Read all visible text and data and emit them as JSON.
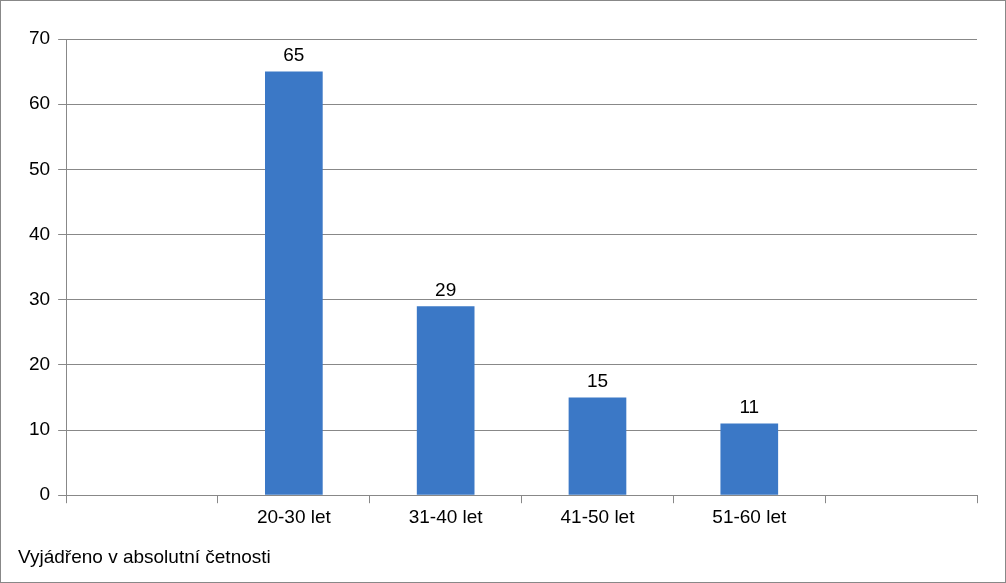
{
  "chart_data": {
    "type": "bar",
    "categories": [
      null,
      "20-30 let",
      "31-40 let",
      "41-50 let",
      "51-60 let",
      null
    ],
    "values": [
      null,
      65,
      29,
      15,
      11,
      null
    ],
    "color": "#3b78c6",
    "ylim": [
      0,
      70
    ],
    "yticks": [
      0,
      10,
      20,
      30,
      40,
      50,
      60,
      70
    ],
    "grid": "y",
    "legend": false,
    "data_labels": true,
    "annotations": [
      "Vyjádřeno v absolutní četnosti"
    ]
  }
}
